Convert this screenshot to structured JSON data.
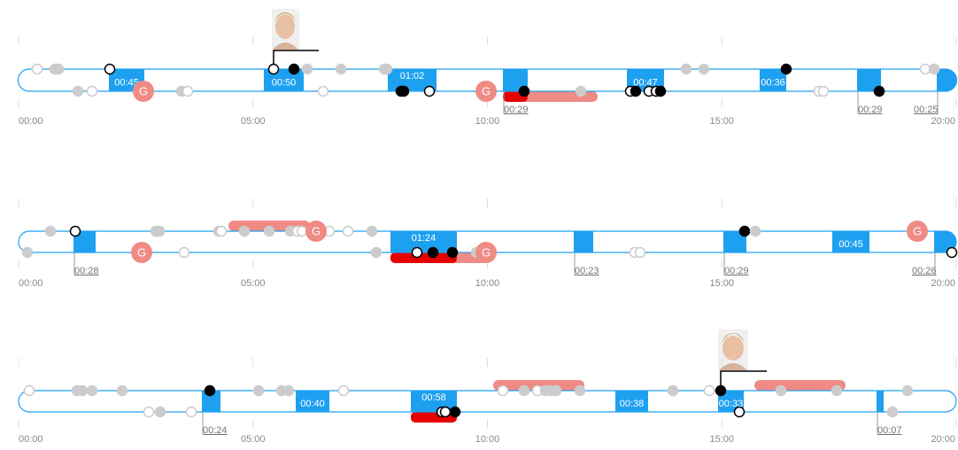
{
  "periods": [
    {
      "axis_labels": [
        "00:00",
        "05:00",
        "10:00",
        "15:00",
        "20:00"
      ],
      "durations": [
        "00:45",
        "00:50",
        "01:02",
        "00:29",
        "00:47",
        "00:36",
        "00:29",
        "00:25"
      ],
      "goals": [
        "G",
        "G"
      ]
    },
    {
      "axis_labels": [
        "00:00",
        "05:00",
        "10:00",
        "15:00",
        "20:00"
      ],
      "durations": [
        "00:28",
        "01:24",
        "00:23",
        "00:29",
        "00:45",
        "00:26"
      ],
      "goals": [
        "G",
        "G",
        "G",
        "G"
      ]
    },
    {
      "axis_labels": [
        "00:00",
        "05:00",
        "10:00",
        "15:00",
        "20:00"
      ],
      "durations": [
        "00:24",
        "00:40",
        "00:58",
        "00:38",
        "00:33",
        "00:07"
      ],
      "goals": []
    }
  ]
}
